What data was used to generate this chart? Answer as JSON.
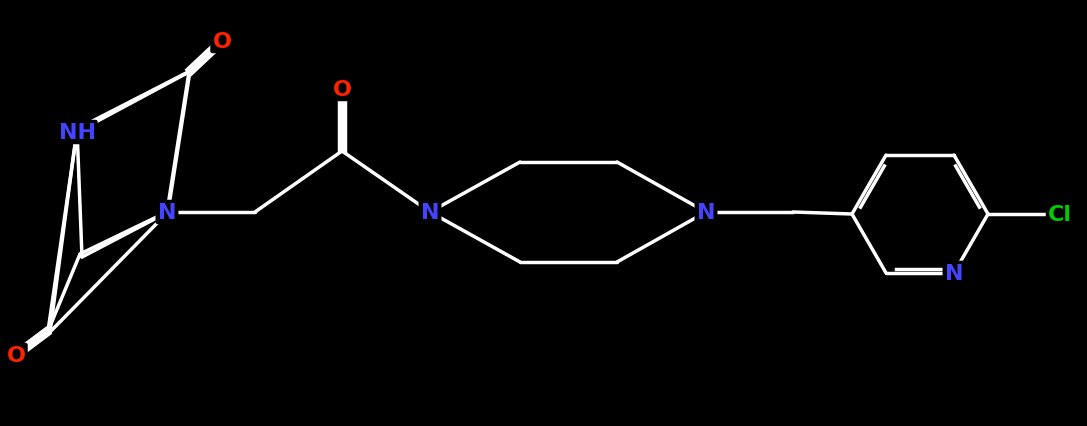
{
  "background_color": "#000000",
  "bond_color": "#ffffff",
  "bond_width": 2.5,
  "atom_colors": {
    "N": "#4444ff",
    "O": "#ff2200",
    "Cl": "#00cc00",
    "C": "#ffffff",
    "H": "#4444ff"
  },
  "figsize": [
    10.87,
    4.27
  ],
  "dpi": 100
}
